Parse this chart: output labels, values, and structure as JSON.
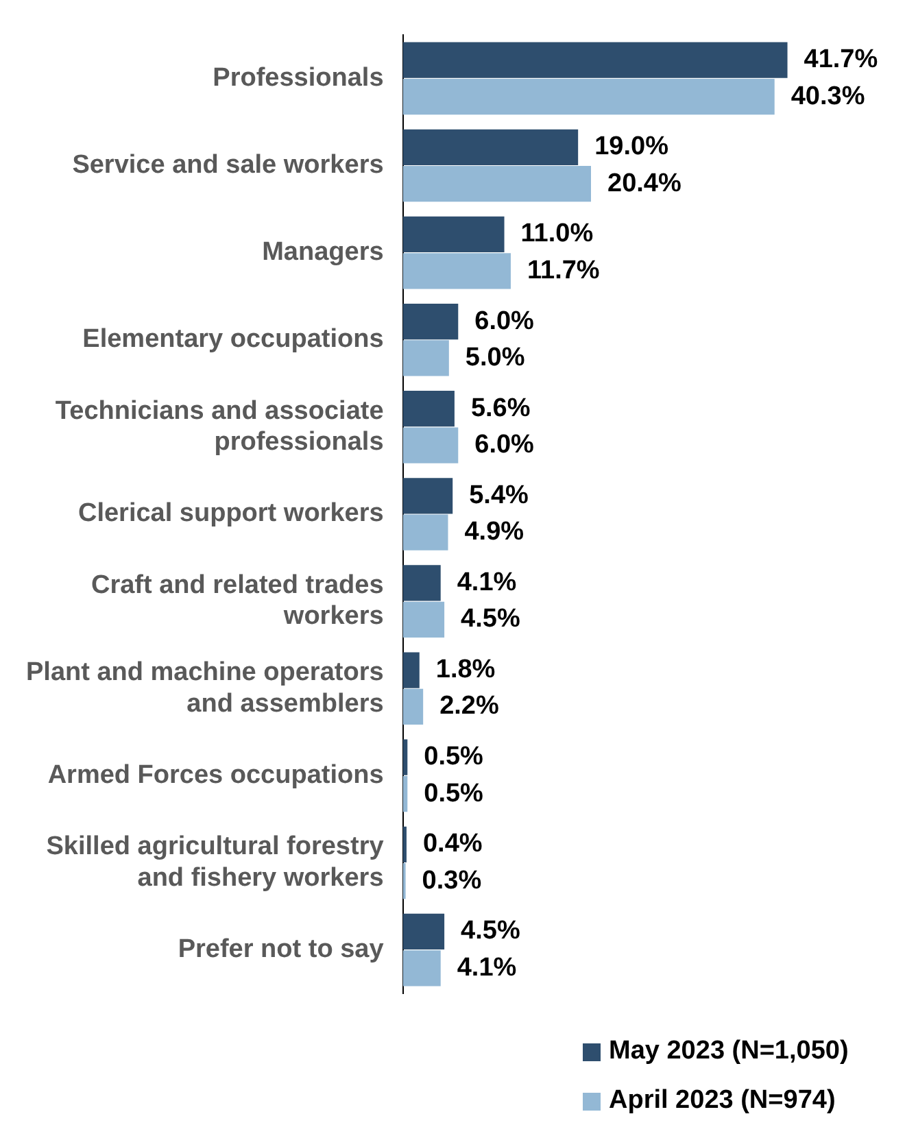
{
  "chart_data": {
    "type": "bar",
    "orientation": "horizontal",
    "categories": [
      "Professionals",
      "Service and sale workers",
      "Managers",
      "Elementary occupations",
      "Technicians and associate professionals",
      "Clerical support workers",
      "Craft and related trades workers",
      "Plant and machine operators and assemblers",
      "Armed Forces occupations",
      "Skilled agricultural forestry and fishery workers",
      "Prefer not to say"
    ],
    "series": [
      {
        "name": "May 2023 (N=1,050)",
        "color": "#2e4e6e",
        "values": [
          41.7,
          19.0,
          11.0,
          6.0,
          5.6,
          5.4,
          4.1,
          1.8,
          0.5,
          0.4,
          4.5
        ],
        "value_labels": [
          "41.7%",
          "19.0%",
          "11.0%",
          "6.0%",
          "5.6%",
          "5.4%",
          "4.1%",
          "1.8%",
          "0.5%",
          "0.4%",
          "4.5%"
        ]
      },
      {
        "name": "April 2023 (N=974)",
        "color": "#93b8d5",
        "values": [
          40.3,
          20.4,
          11.7,
          5.0,
          6.0,
          4.9,
          4.5,
          2.2,
          0.5,
          0.3,
          4.1
        ],
        "value_labels": [
          "40.3%",
          "20.4%",
          "11.7%",
          "5.0%",
          "6.0%",
          "4.9%",
          "4.5%",
          "2.2%",
          "0.5%",
          "0.3%",
          "4.1%"
        ]
      }
    ],
    "legend": "bottom right"
  }
}
